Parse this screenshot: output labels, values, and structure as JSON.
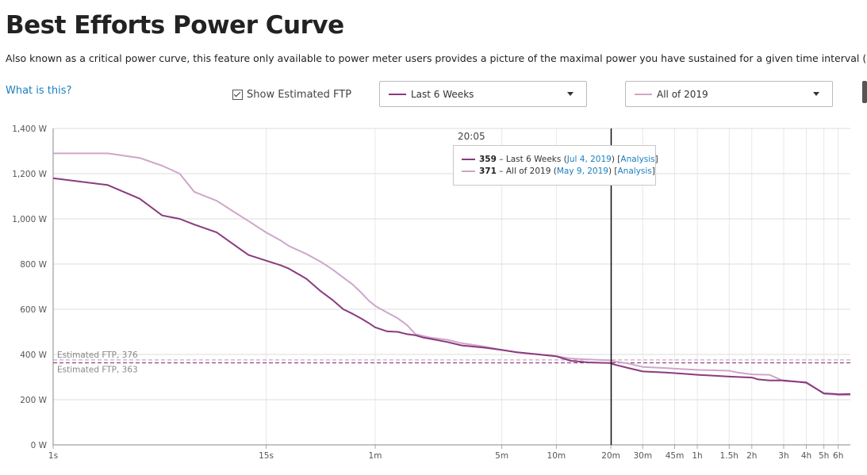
{
  "page": {
    "title": "Best Efforts Power Curve",
    "description": "Also known as a critical power curve, this feature only available to power meter users provides a picture of the maximal power you have sustained for a given time interval (horizontal-axis)",
    "help_link": "What is this?",
    "ftp_toggle_label": "Show Estimated FTP",
    "range_1": "Last 6 Weeks",
    "range_2": "All of 2019"
  },
  "colors": {
    "series_recent": "#8b3a7e",
    "series_year": "#cfa6c9"
  },
  "tooltip": {
    "time": "20:05",
    "rows": [
      {
        "value": "359",
        "label": "Last 6 Weeks",
        "date": "Jul 4, 2019",
        "analysis": "Analysis"
      },
      {
        "value": "371",
        "label": "All of 2019",
        "date": "May 9, 2019",
        "analysis": "Analysis"
      }
    ]
  },
  "chart_data": {
    "type": "line",
    "title": "Best Efforts Power Curve",
    "xlabel": "",
    "ylabel": "",
    "x_scale": "log",
    "xlim": [
      1,
      25200
    ],
    "ylim": [
      0,
      1400
    ],
    "grid": true,
    "y_ticks": [
      0,
      200,
      400,
      600,
      800,
      1000,
      1200,
      1400
    ],
    "y_tick_labels": [
      "0 W",
      "200 W",
      "400 W",
      "600 W",
      "800 W",
      "1,000 W",
      "1,200 W",
      "1,400 W"
    ],
    "x_ticks": [
      1,
      15,
      60,
      300,
      600,
      1200,
      1800,
      2700,
      3600,
      5400,
      7200,
      10800,
      14400,
      18000,
      21600
    ],
    "x_tick_labels": [
      "1s",
      "15s",
      "1m",
      "5m",
      "10m",
      "20m",
      "30m",
      "45m",
      "1h",
      "1.5h",
      "2h",
      "3h",
      "4h",
      "5h",
      "6h"
    ],
    "ftp_lines": [
      {
        "label": "Estimated FTP, 376",
        "value": 376,
        "series": "All of 2019"
      },
      {
        "label": "Estimated FTP, 363",
        "value": 363,
        "series": "Last 6 Weeks"
      }
    ],
    "crosshair": {
      "x": 1205,
      "label": "20:05"
    },
    "series": [
      {
        "name": "Last 6 Weeks",
        "x": [
          1,
          2,
          3,
          4,
          5,
          6,
          8,
          10,
          12,
          15,
          18,
          20,
          25,
          30,
          35,
          40,
          45,
          50,
          55,
          60,
          70,
          80,
          90,
          100,
          110,
          120,
          150,
          180,
          240,
          300,
          360,
          480,
          600,
          720,
          900,
          1200,
          1205,
          1500,
          1800,
          2400,
          3000,
          3600,
          5400,
          7200,
          7800,
          9000,
          10800,
          12600,
          14400,
          18000,
          21000,
          21600,
          25200
        ],
        "y": [
          1180,
          1150,
          1090,
          1015,
          1000,
          975,
          940,
          885,
          840,
          815,
          795,
          780,
          735,
          680,
          640,
          600,
          580,
          560,
          540,
          520,
          502,
          500,
          490,
          485,
          475,
          470,
          455,
          440,
          430,
          420,
          410,
          400,
          392,
          372,
          365,
          362,
          359,
          340,
          325,
          320,
          315,
          310,
          302,
          298,
          290,
          285,
          285,
          280,
          275,
          228,
          225,
          224,
          225
        ]
      },
      {
        "name": "All of 2019",
        "x": [
          1,
          2,
          3,
          4,
          5,
          6,
          8,
          10,
          12,
          15,
          18,
          20,
          25,
          30,
          35,
          40,
          45,
          50,
          55,
          60,
          70,
          80,
          90,
          100,
          110,
          120,
          150,
          180,
          240,
          300,
          360,
          480,
          600,
          720,
          900,
          1200,
          1205,
          1500,
          1800,
          2400,
          3000,
          3600,
          5400,
          6000,
          7200,
          9000,
          10800,
          12600,
          14400,
          18000,
          21000,
          21600,
          25200
        ],
        "y": [
          1290,
          1290,
          1270,
          1235,
          1200,
          1120,
          1080,
          1030,
          990,
          940,
          905,
          880,
          845,
          810,
          775,
          740,
          710,
          675,
          640,
          615,
          585,
          560,
          530,
          490,
          482,
          475,
          465,
          450,
          435,
          420,
          410,
          400,
          392,
          382,
          378,
          374,
          371,
          360,
          345,
          340,
          335,
          332,
          328,
          320,
          312,
          310,
          282,
          280,
          278,
          226,
          222,
          220,
          220
        ]
      }
    ]
  }
}
